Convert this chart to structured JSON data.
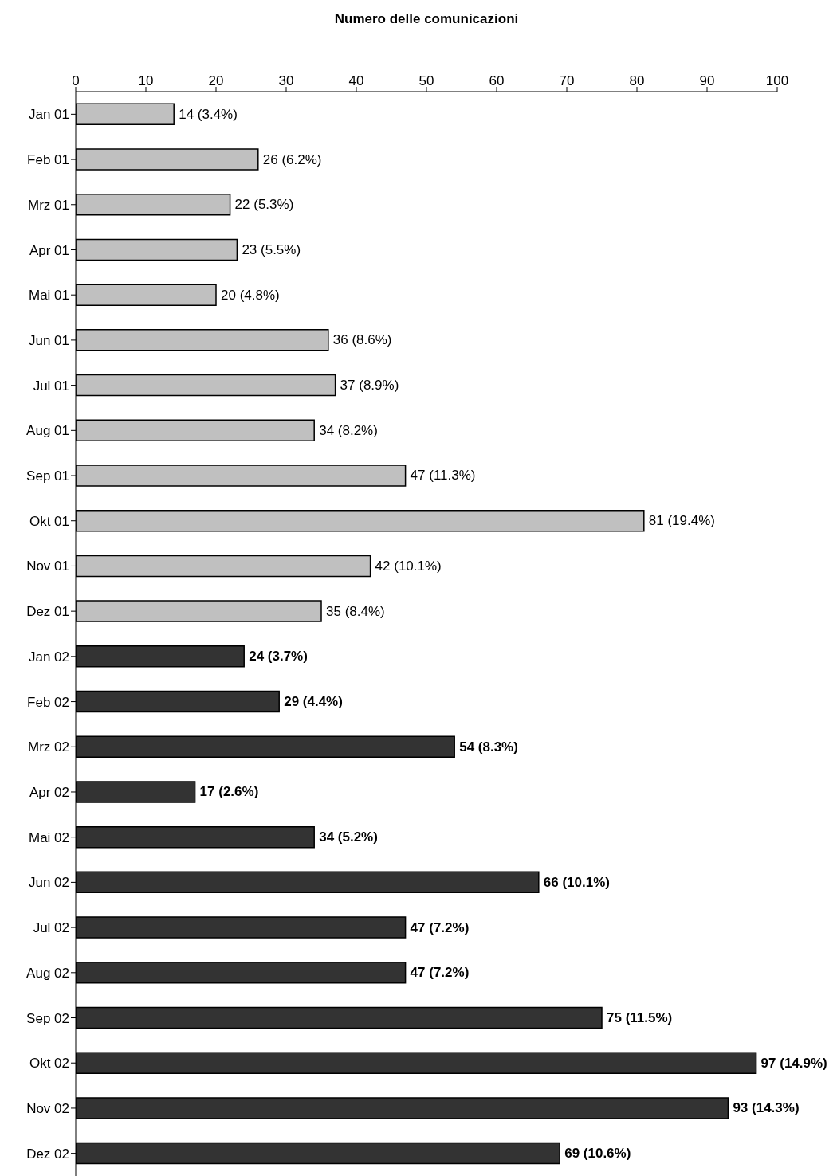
{
  "chart_data": {
    "type": "bar",
    "orientation": "horizontal",
    "stacked": true,
    "xlabel": "Numero delle comunicazioni",
    "categories": [
      "Jan 01",
      "Feb 01",
      "Mrz 01",
      "Apr 01",
      "Mai 01",
      "Jun 01",
      "Jul 01",
      "Aug 01",
      "Sep 01",
      "Okt 01",
      "Nov 01",
      "Dez 01",
      "Jan 02",
      "Feb 02",
      "Mrz 02",
      "Apr 02",
      "Mai 02",
      "Jun 02",
      "Jul 02",
      "Aug 02",
      "Sep 02",
      "Okt 02",
      "Nov 02",
      "Dez 02"
    ],
    "series": [
      {
        "color": "#c0c0c0",
        "values": [
          14,
          26,
          22,
          23,
          20,
          36,
          37,
          34,
          47,
          81,
          42,
          35,
          null,
          null,
          null,
          null,
          null,
          null,
          null,
          null,
          null,
          null,
          null,
          null
        ],
        "value_labels": [
          "14 (3.4%)",
          "26 (6.2%)",
          "22 (5.3%)",
          "23 (5.5%)",
          "20 (4.8%)",
          "36 (8.6%)",
          "37 (8.9%)",
          "34 (8.2%)",
          "47 (11.3%)",
          "81 (19.4%)",
          "42 (10.1%)",
          "35 (8.4%)",
          null,
          null,
          null,
          null,
          null,
          null,
          null,
          null,
          null,
          null,
          null,
          null
        ]
      },
      {
        "color": "#333333",
        "values": [
          null,
          null,
          null,
          null,
          null,
          null,
          null,
          null,
          null,
          null,
          null,
          null,
          24,
          29,
          54,
          17,
          34,
          66,
          47,
          47,
          75,
          97,
          93,
          69
        ],
        "value_labels": [
          null,
          null,
          null,
          null,
          null,
          null,
          null,
          null,
          null,
          null,
          null,
          null,
          "24 (3.7%)",
          "29 (4.4%)",
          "54 (8.3%)",
          "17 (2.6%)",
          "34 (5.2%)",
          "66 (10.1%)",
          "47 (7.2%)",
          "47 (7.2%)",
          "75 (11.5%)",
          "97 (14.9%)",
          "93 (14.3%)",
          "69 (10.6%)"
        ]
      }
    ],
    "xlim": [
      0,
      100
    ],
    "xticks": [
      0,
      10,
      20,
      30,
      40,
      50,
      60,
      70,
      80,
      90,
      100
    ],
    "grid": false,
    "legend": false
  }
}
